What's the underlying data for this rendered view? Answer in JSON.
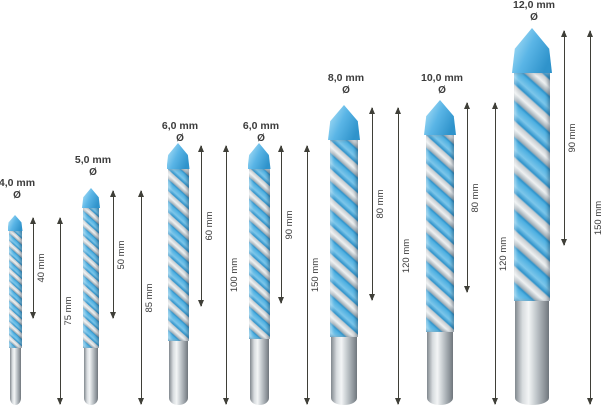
{
  "diagram": {
    "unit_symbol": "Ø",
    "bits": [
      {
        "diameter": "4,0 mm",
        "working_length": "40 mm",
        "total_length": "75 mm"
      },
      {
        "diameter": "5,0 mm",
        "working_length": "50 mm",
        "total_length": "85 mm"
      },
      {
        "diameter": "6,0 mm",
        "working_length": "60 mm",
        "total_length": "100 mm"
      },
      {
        "diameter": "6,0 mm",
        "working_length": "90 mm",
        "total_length": "150 mm"
      },
      {
        "diameter": "8,0 mm",
        "working_length": "80 mm",
        "total_length": "120 mm"
      },
      {
        "diameter": "10,0 mm",
        "working_length": "80 mm",
        "total_length": "120 mm"
      },
      {
        "diameter": "12,0 mm",
        "working_length": "90 mm",
        "total_length": "150 mm"
      }
    ],
    "colors": {
      "bosch_blue": "#4FB0E1",
      "bosch_blue_light": "#AADFF6",
      "bosch_blue_dark": "#2F93CB",
      "steel_light": "#F3F5F6",
      "steel_mid": "#C6CBCF",
      "steel_dark": "#8B9298",
      "annotation": "#3F3F38",
      "background": "#FFFFFF"
    }
  }
}
